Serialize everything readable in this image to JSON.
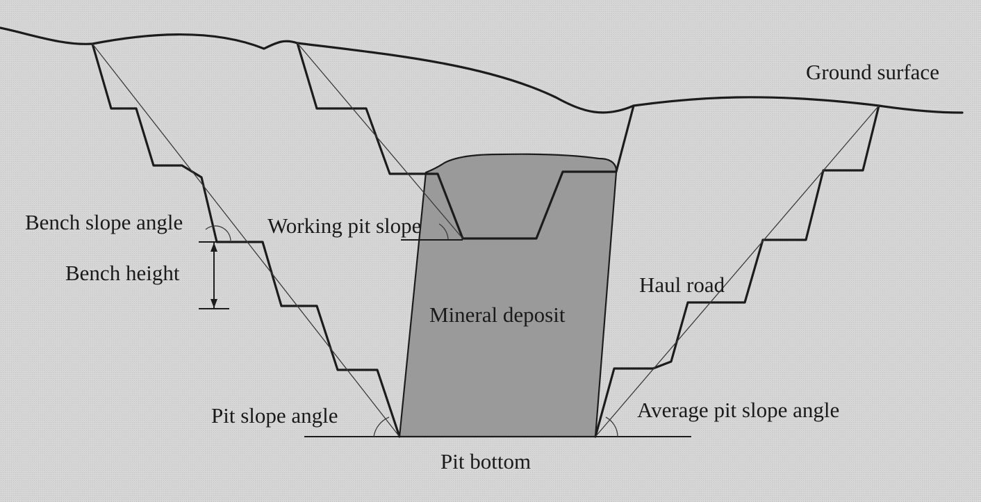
{
  "labels": {
    "ground_surface": "Ground surface",
    "bench_slope_angle": "Bench slope angle",
    "working_pit_slope": "Working pit slope",
    "bench_height": "Bench height",
    "haul_road": "Haul road",
    "mineral_deposit": "Mineral deposit",
    "pit_slope_angle": "Pit slope angle",
    "average_pit_slope_angle": "Average pit slope angle",
    "pit_bottom": "Pit bottom"
  },
  "colors": {
    "background": "#d6d6d6",
    "deposit_fill": "#9a9a9a",
    "line": "#1c1c1c"
  }
}
